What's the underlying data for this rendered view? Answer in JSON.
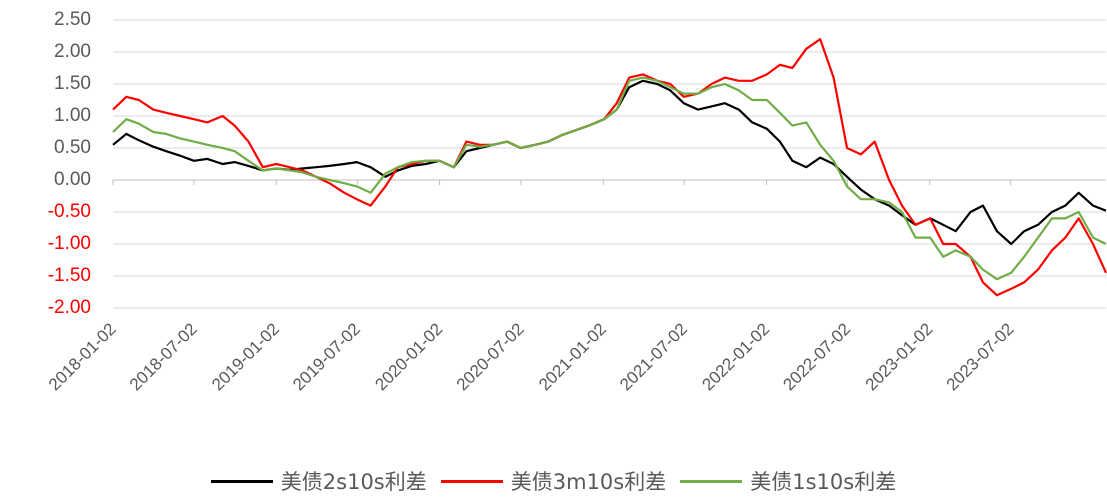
{
  "chart_data": {
    "type": "line",
    "title": "",
    "xlabel": "",
    "ylabel": "",
    "ylim": [
      -2.0,
      2.5
    ],
    "yticks": [
      "2.50",
      "2.00",
      "1.50",
      "1.00",
      "0.50",
      "0.00",
      "-0.50",
      "-1.00",
      "-1.50",
      "-2.00"
    ],
    "ytick_values": [
      2.5,
      2.0,
      1.5,
      1.0,
      0.5,
      0.0,
      -0.5,
      -1.0,
      -1.5,
      -2.0
    ],
    "positive_tick_color": "#595959",
    "negative_tick_color": "#ff0000",
    "grid": "horizontal",
    "xlim": [
      "2018-01-02",
      "2024-01-31"
    ],
    "xticks": [
      "2018-01-02",
      "2018-07-02",
      "2019-01-02",
      "2019-07-02",
      "2020-01-02",
      "2020-07-02",
      "2021-01-02",
      "2021-07-02",
      "2022-01-02",
      "2022-07-02",
      "2023-01-02",
      "2023-07-02"
    ],
    "legend_position": "bottom",
    "x": [
      "2018-01-02",
      "2018-02-01",
      "2018-03-01",
      "2018-04-02",
      "2018-05-01",
      "2018-06-01",
      "2018-07-02",
      "2018-08-01",
      "2018-09-04",
      "2018-10-01",
      "2018-11-01",
      "2018-12-03",
      "2019-01-02",
      "2019-02-01",
      "2019-03-01",
      "2019-04-01",
      "2019-05-01",
      "2019-06-03",
      "2019-07-01",
      "2019-08-01",
      "2019-09-03",
      "2019-10-01",
      "2019-11-01",
      "2019-12-02",
      "2020-01-02",
      "2020-02-03",
      "2020-03-02",
      "2020-04-01",
      "2020-05-01",
      "2020-06-01",
      "2020-07-01",
      "2020-08-03",
      "2020-09-01",
      "2020-10-01",
      "2020-11-02",
      "2020-12-01",
      "2021-01-04",
      "2021-02-01",
      "2021-03-01",
      "2021-04-01",
      "2021-05-03",
      "2021-06-01",
      "2021-07-01",
      "2021-08-02",
      "2021-09-01",
      "2021-10-01",
      "2021-11-01",
      "2021-12-01",
      "2022-01-03",
      "2022-02-01",
      "2022-03-01",
      "2022-04-01",
      "2022-05-02",
      "2022-06-01",
      "2022-07-01",
      "2022-08-01",
      "2022-09-01",
      "2022-10-03",
      "2022-11-01",
      "2022-12-01",
      "2023-01-03",
      "2023-02-01",
      "2023-03-01",
      "2023-04-03",
      "2023-05-01",
      "2023-06-01",
      "2023-07-03",
      "2023-08-01",
      "2023-09-01",
      "2023-10-02",
      "2023-11-01",
      "2023-12-01",
      "2024-01-02",
      "2024-01-31"
    ],
    "series": [
      {
        "name": "美债2s10s利差",
        "color": "#000000",
        "values": [
          0.55,
          0.72,
          0.62,
          0.52,
          0.45,
          0.38,
          0.3,
          0.33,
          0.25,
          0.28,
          0.22,
          0.15,
          0.18,
          0.16,
          0.18,
          0.2,
          0.22,
          0.25,
          0.28,
          0.2,
          0.05,
          0.15,
          0.22,
          0.25,
          0.3,
          0.2,
          0.45,
          0.5,
          0.55,
          0.6,
          0.5,
          0.55,
          0.6,
          0.7,
          0.78,
          0.85,
          0.95,
          1.1,
          1.45,
          1.55,
          1.5,
          1.4,
          1.2,
          1.1,
          1.15,
          1.2,
          1.1,
          0.9,
          0.8,
          0.6,
          0.3,
          0.2,
          0.35,
          0.25,
          0.05,
          -0.15,
          -0.3,
          -0.4,
          -0.55,
          -0.7,
          -0.6,
          -0.7,
          -0.8,
          -0.5,
          -0.4,
          -0.8,
          -1.0,
          -0.8,
          -0.7,
          -0.5,
          -0.4,
          -0.2,
          -0.4,
          -0.48
        ]
      },
      {
        "name": "美债3m10s利差",
        "color": "#ff0000",
        "values": [
          1.1,
          1.3,
          1.25,
          1.1,
          1.05,
          1.0,
          0.95,
          0.9,
          1.0,
          0.85,
          0.6,
          0.2,
          0.25,
          0.2,
          0.15,
          0.05,
          -0.05,
          -0.2,
          -0.3,
          -0.4,
          -0.1,
          0.2,
          0.25,
          0.3,
          0.3,
          0.2,
          0.6,
          0.55,
          0.55,
          0.6,
          0.5,
          0.55,
          0.6,
          0.7,
          0.78,
          0.85,
          0.95,
          1.2,
          1.6,
          1.65,
          1.55,
          1.5,
          1.3,
          1.35,
          1.5,
          1.6,
          1.55,
          1.55,
          1.65,
          1.8,
          1.75,
          2.05,
          2.2,
          1.6,
          0.5,
          0.4,
          0.6,
          0.0,
          -0.4,
          -0.7,
          -0.6,
          -1.0,
          -1.0,
          -1.2,
          -1.6,
          -1.8,
          -1.7,
          -1.6,
          -1.4,
          -1.1,
          -0.9,
          -0.6,
          -1.0,
          -1.45
        ]
      },
      {
        "name": "美债1s10s利差",
        "color": "#70ad47",
        "values": [
          0.75,
          0.95,
          0.88,
          0.75,
          0.72,
          0.65,
          0.6,
          0.55,
          0.5,
          0.45,
          0.3,
          0.15,
          0.18,
          0.15,
          0.12,
          0.05,
          0.0,
          -0.05,
          -0.1,
          -0.2,
          0.1,
          0.2,
          0.28,
          0.3,
          0.3,
          0.2,
          0.55,
          0.52,
          0.55,
          0.6,
          0.5,
          0.55,
          0.6,
          0.7,
          0.78,
          0.85,
          0.95,
          1.1,
          1.55,
          1.6,
          1.55,
          1.45,
          1.35,
          1.35,
          1.45,
          1.5,
          1.4,
          1.25,
          1.25,
          1.05,
          0.85,
          0.9,
          0.55,
          0.3,
          -0.1,
          -0.3,
          -0.3,
          -0.35,
          -0.5,
          -0.9,
          -0.9,
          -1.2,
          -1.1,
          -1.2,
          -1.4,
          -1.55,
          -1.45,
          -1.2,
          -0.9,
          -0.6,
          -0.6,
          -0.5,
          -0.9,
          -1.0
        ]
      }
    ]
  }
}
